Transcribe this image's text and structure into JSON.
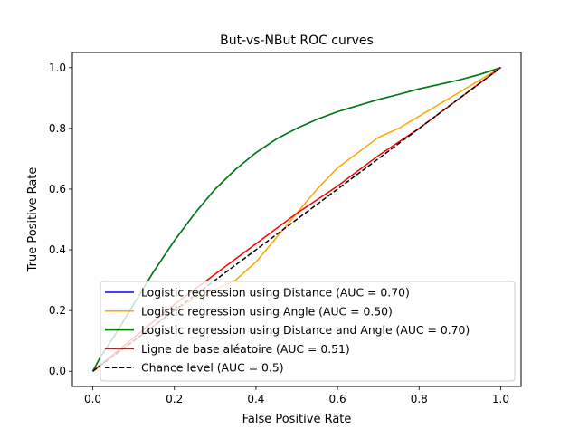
{
  "chart_data": {
    "type": "line",
    "title": "But-vs-NBut ROC curves",
    "xlabel": "False Positive Rate",
    "ylabel": "True Positive Rate",
    "xlim": [
      -0.05,
      1.05
    ],
    "ylim": [
      -0.05,
      1.05
    ],
    "xticks": [
      "0.0",
      "0.2",
      "0.4",
      "0.6",
      "0.8",
      "1.0"
    ],
    "yticks": [
      "0.0",
      "0.2",
      "0.4",
      "0.6",
      "0.8",
      "1.0"
    ],
    "grid": false,
    "legend_position": "lower-right",
    "series": [
      {
        "name": "Logistic regression using Distance (AUC = 0.70)",
        "color": "#0000ff",
        "style": "solid",
        "x": [
          0,
          0.02,
          0.05,
          0.1,
          0.15,
          0.2,
          0.25,
          0.3,
          0.35,
          0.4,
          0.45,
          0.5,
          0.55,
          0.6,
          0.65,
          0.7,
          0.75,
          0.8,
          0.85,
          0.9,
          0.95,
          1.0
        ],
        "y": [
          0,
          0.05,
          0.11,
          0.22,
          0.33,
          0.43,
          0.52,
          0.6,
          0.665,
          0.72,
          0.765,
          0.8,
          0.83,
          0.855,
          0.875,
          0.895,
          0.912,
          0.93,
          0.945,
          0.96,
          0.978,
          1.0
        ]
      },
      {
        "name": "Logistic regression using Angle (AUC = 0.50)",
        "color": "#ffa500",
        "style": "solid",
        "x": [
          0,
          0.05,
          0.1,
          0.15,
          0.2,
          0.25,
          0.3,
          0.35,
          0.4,
          0.45,
          0.5,
          0.55,
          0.6,
          0.65,
          0.7,
          0.75,
          0.8,
          0.85,
          0.9,
          0.95,
          1.0
        ],
        "y": [
          0,
          0.05,
          0.1,
          0.15,
          0.2,
          0.24,
          0.27,
          0.3,
          0.36,
          0.44,
          0.52,
          0.6,
          0.67,
          0.72,
          0.77,
          0.8,
          0.84,
          0.88,
          0.92,
          0.96,
          1.0
        ]
      },
      {
        "name": "Logistic regression using Distance and Angle (AUC = 0.70)",
        "color": "#008000",
        "style": "solid",
        "x": [
          0,
          0.02,
          0.05,
          0.1,
          0.15,
          0.2,
          0.25,
          0.3,
          0.35,
          0.4,
          0.45,
          0.5,
          0.55,
          0.6,
          0.65,
          0.7,
          0.75,
          0.8,
          0.85,
          0.9,
          0.95,
          1.0
        ],
        "y": [
          0,
          0.05,
          0.11,
          0.22,
          0.33,
          0.43,
          0.52,
          0.6,
          0.665,
          0.72,
          0.765,
          0.8,
          0.83,
          0.855,
          0.875,
          0.895,
          0.912,
          0.93,
          0.945,
          0.96,
          0.978,
          1.0
        ]
      },
      {
        "name": "Ligne de base aléatoire (AUC = 0.51)",
        "color": "#ff0000",
        "style": "solid",
        "x": [
          0,
          0.1,
          0.2,
          0.3,
          0.4,
          0.5,
          0.6,
          0.7,
          0.8,
          0.9,
          1.0
        ],
        "y": [
          0,
          0.11,
          0.22,
          0.32,
          0.42,
          0.52,
          0.61,
          0.71,
          0.8,
          0.9,
          1.0
        ]
      },
      {
        "name": "Chance level (AUC = 0.5)",
        "color": "#000000",
        "style": "dashed",
        "x": [
          0,
          1
        ],
        "y": [
          0,
          1
        ]
      }
    ]
  }
}
